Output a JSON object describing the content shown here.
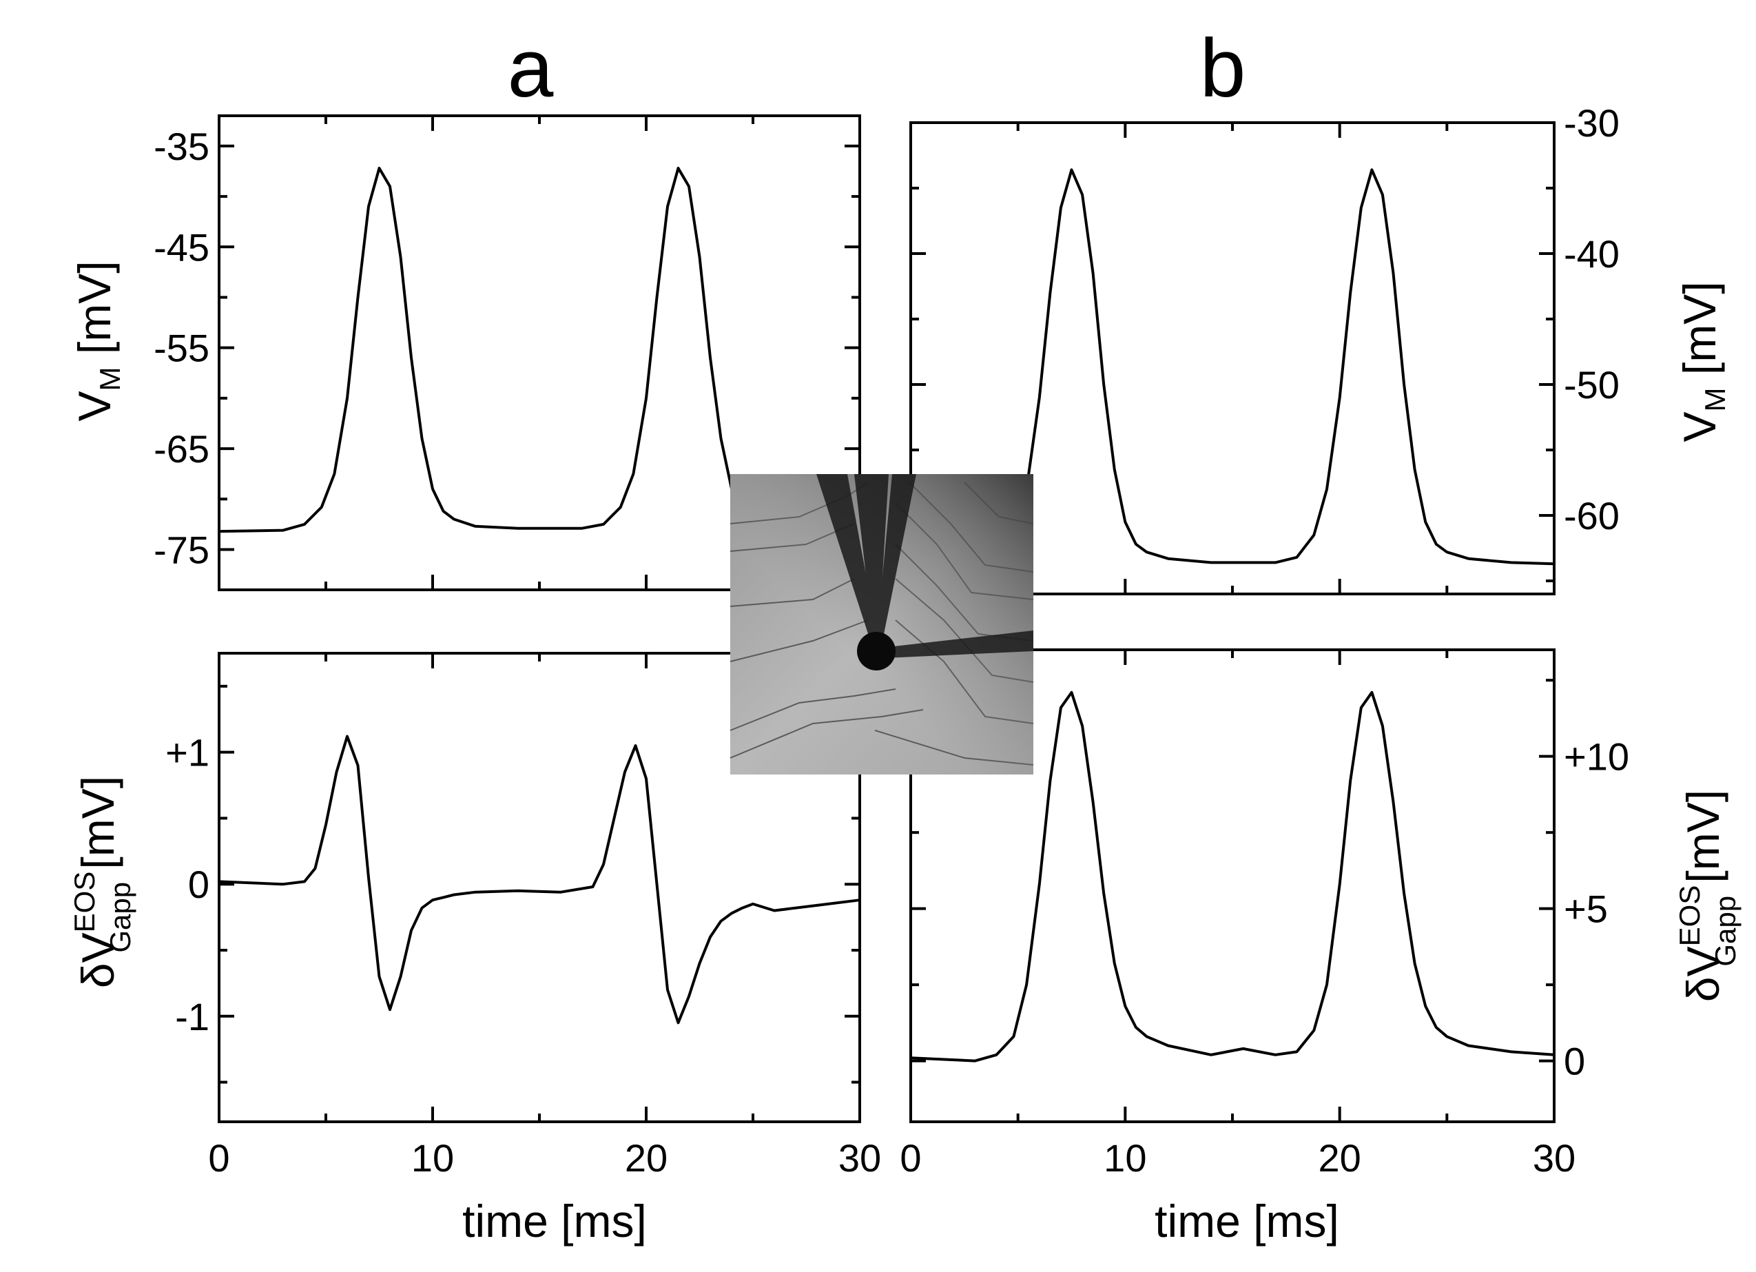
{
  "chart_data": [
    {
      "type": "line",
      "panel": "a",
      "position": "top-left",
      "ylabel": "V_M [mV]",
      "xlim": [
        0,
        30
      ],
      "ylim": [
        -79,
        -32
      ],
      "yticks": [
        -35,
        -45,
        -55,
        -65,
        -75
      ],
      "yticklabels": [
        "-35",
        "-45",
        "-55",
        "-65",
        "-75"
      ],
      "yaxis_side": "left",
      "series": [
        {
          "x": [
            0,
            3,
            4,
            4.8,
            5.4,
            6,
            6.5,
            7,
            7.5,
            8,
            8.5,
            9,
            9.5,
            10,
            10.5,
            11,
            12,
            14,
            17,
            18,
            18.8,
            19.4,
            20,
            20.5,
            21,
            21.5,
            22,
            22.5,
            23,
            23.5,
            24,
            24.5,
            25
          ],
          "y": [
            -73.2,
            -73.1,
            -72.5,
            -70.8,
            -67.5,
            -60,
            -50,
            -41,
            -37.2,
            -39,
            -46,
            -56,
            -64,
            -69,
            -71.2,
            -72,
            -72.7,
            -72.9,
            -72.9,
            -72.5,
            -70.8,
            -67.5,
            -60,
            -50,
            -41,
            -37.2,
            -39,
            -46,
            -56,
            -64,
            -69,
            -71.2,
            -72
          ]
        }
      ]
    },
    {
      "type": "line",
      "panel": "a",
      "position": "bottom-left",
      "ylabel": "δV^EOS_Gapp [mV]",
      "xlabel": "time [ms]",
      "xlim": [
        0,
        30
      ],
      "xticks": [
        0,
        10,
        20,
        30
      ],
      "xticklabels": [
        "0",
        "10",
        "20",
        "30"
      ],
      "ylim": [
        -1.8,
        1.75
      ],
      "yticks": [
        1,
        0,
        -1
      ],
      "yticklabels": [
        "+1",
        "0",
        "-1"
      ],
      "yaxis_side": "left",
      "series": [
        {
          "x": [
            0,
            3,
            4,
            4.5,
            5,
            5.5,
            6,
            6.5,
            7,
            7.5,
            8,
            8.5,
            9,
            9.5,
            10,
            10.5,
            11,
            12,
            14,
            16,
            17.5,
            18,
            18.5,
            19,
            19.5,
            20,
            20.5,
            21,
            21.5,
            22,
            22.5,
            23,
            23.5,
            24,
            24.5,
            25,
            26,
            28,
            30
          ],
          "y": [
            0.02,
            0.0,
            0.02,
            0.12,
            0.45,
            0.85,
            1.12,
            0.9,
            0.05,
            -0.7,
            -0.95,
            -0.7,
            -0.35,
            -0.18,
            -0.12,
            -0.1,
            -0.08,
            -0.06,
            -0.05,
            -0.06,
            -0.02,
            0.15,
            0.5,
            0.85,
            1.05,
            0.8,
            0.0,
            -0.8,
            -1.05,
            -0.85,
            -0.6,
            -0.4,
            -0.28,
            -0.22,
            -0.18,
            -0.15,
            -0.2,
            -0.16,
            -0.12
          ]
        }
      ]
    },
    {
      "type": "line",
      "panel": "b",
      "position": "top-right",
      "ylabel": "V_M [mV]",
      "xlim": [
        0,
        30
      ],
      "ylim": [
        -66,
        -30
      ],
      "yticks": [
        -30,
        -40,
        -50,
        -60
      ],
      "yticklabels": [
        "-30",
        "-40",
        "-50",
        "-60"
      ],
      "yaxis_side": "right",
      "series": [
        {
          "x": [
            0,
            3,
            4,
            4.8,
            5.4,
            6,
            6.5,
            7,
            7.5,
            8,
            8.5,
            9,
            9.5,
            10,
            10.5,
            11,
            12,
            14,
            17,
            18,
            18.8,
            19.4,
            20,
            20.5,
            21,
            21.5,
            22,
            22.5,
            23,
            23.5,
            24,
            24.5,
            25,
            26,
            28,
            30
          ],
          "y": [
            -63.8,
            -63.7,
            -63.3,
            -61.5,
            -58,
            -51,
            -43,
            -36.5,
            -33.6,
            -35.5,
            -41.5,
            -50,
            -56.5,
            -60.5,
            -62.2,
            -62.8,
            -63.3,
            -63.6,
            -63.6,
            -63.2,
            -61.5,
            -58,
            -51,
            -43,
            -36.5,
            -33.6,
            -35.5,
            -41.5,
            -50,
            -56.5,
            -60.5,
            -62.2,
            -62.8,
            -63.3,
            -63.6,
            -63.7
          ]
        }
      ]
    },
    {
      "type": "line",
      "panel": "b",
      "position": "bottom-right",
      "ylabel": "δV^EOS_Gapp [mV]",
      "xlabel": "time [ms]",
      "xlim": [
        0,
        30
      ],
      "xticks": [
        0,
        10,
        20,
        30
      ],
      "xticklabels": [
        "0",
        "10",
        "20",
        "30"
      ],
      "ylim": [
        -2,
        13.5
      ],
      "yticks": [
        10,
        5,
        0
      ],
      "yticklabels": [
        "+10",
        "+5",
        "0"
      ],
      "yaxis_side": "right",
      "series": [
        {
          "x": [
            0,
            3,
            4,
            4.8,
            5.4,
            6,
            6.5,
            7,
            7.5,
            8,
            8.5,
            9,
            9.5,
            10,
            10.5,
            11,
            12,
            14,
            15.5,
            17,
            18,
            18.8,
            19.4,
            20,
            20.5,
            21,
            21.5,
            22,
            22.5,
            23,
            23.5,
            24,
            24.5,
            25,
            26,
            28,
            30
          ],
          "y": [
            0.1,
            0.0,
            0.2,
            0.8,
            2.5,
            5.8,
            9.2,
            11.6,
            12.1,
            11.0,
            8.5,
            5.5,
            3.2,
            1.8,
            1.1,
            0.8,
            0.5,
            0.2,
            0.4,
            0.2,
            0.3,
            1.0,
            2.5,
            5.8,
            9.2,
            11.6,
            12.1,
            11.0,
            8.5,
            5.5,
            3.2,
            1.8,
            1.1,
            0.8,
            0.5,
            0.3,
            0.2
          ]
        }
      ]
    }
  ],
  "panel_labels": {
    "left": "a",
    "right": "b"
  },
  "axis_text": {
    "vm_main": "V",
    "vm_sub": "M",
    "vm_unit": " [mV]",
    "dv_main": "δV",
    "dv_sup": "EOS",
    "dv_sub": "Gapp",
    "dv_unit": " [mV]",
    "xlabel": "time [ms]"
  },
  "inset": {
    "description_icon": "micrograph-neuron-electrodes"
  }
}
